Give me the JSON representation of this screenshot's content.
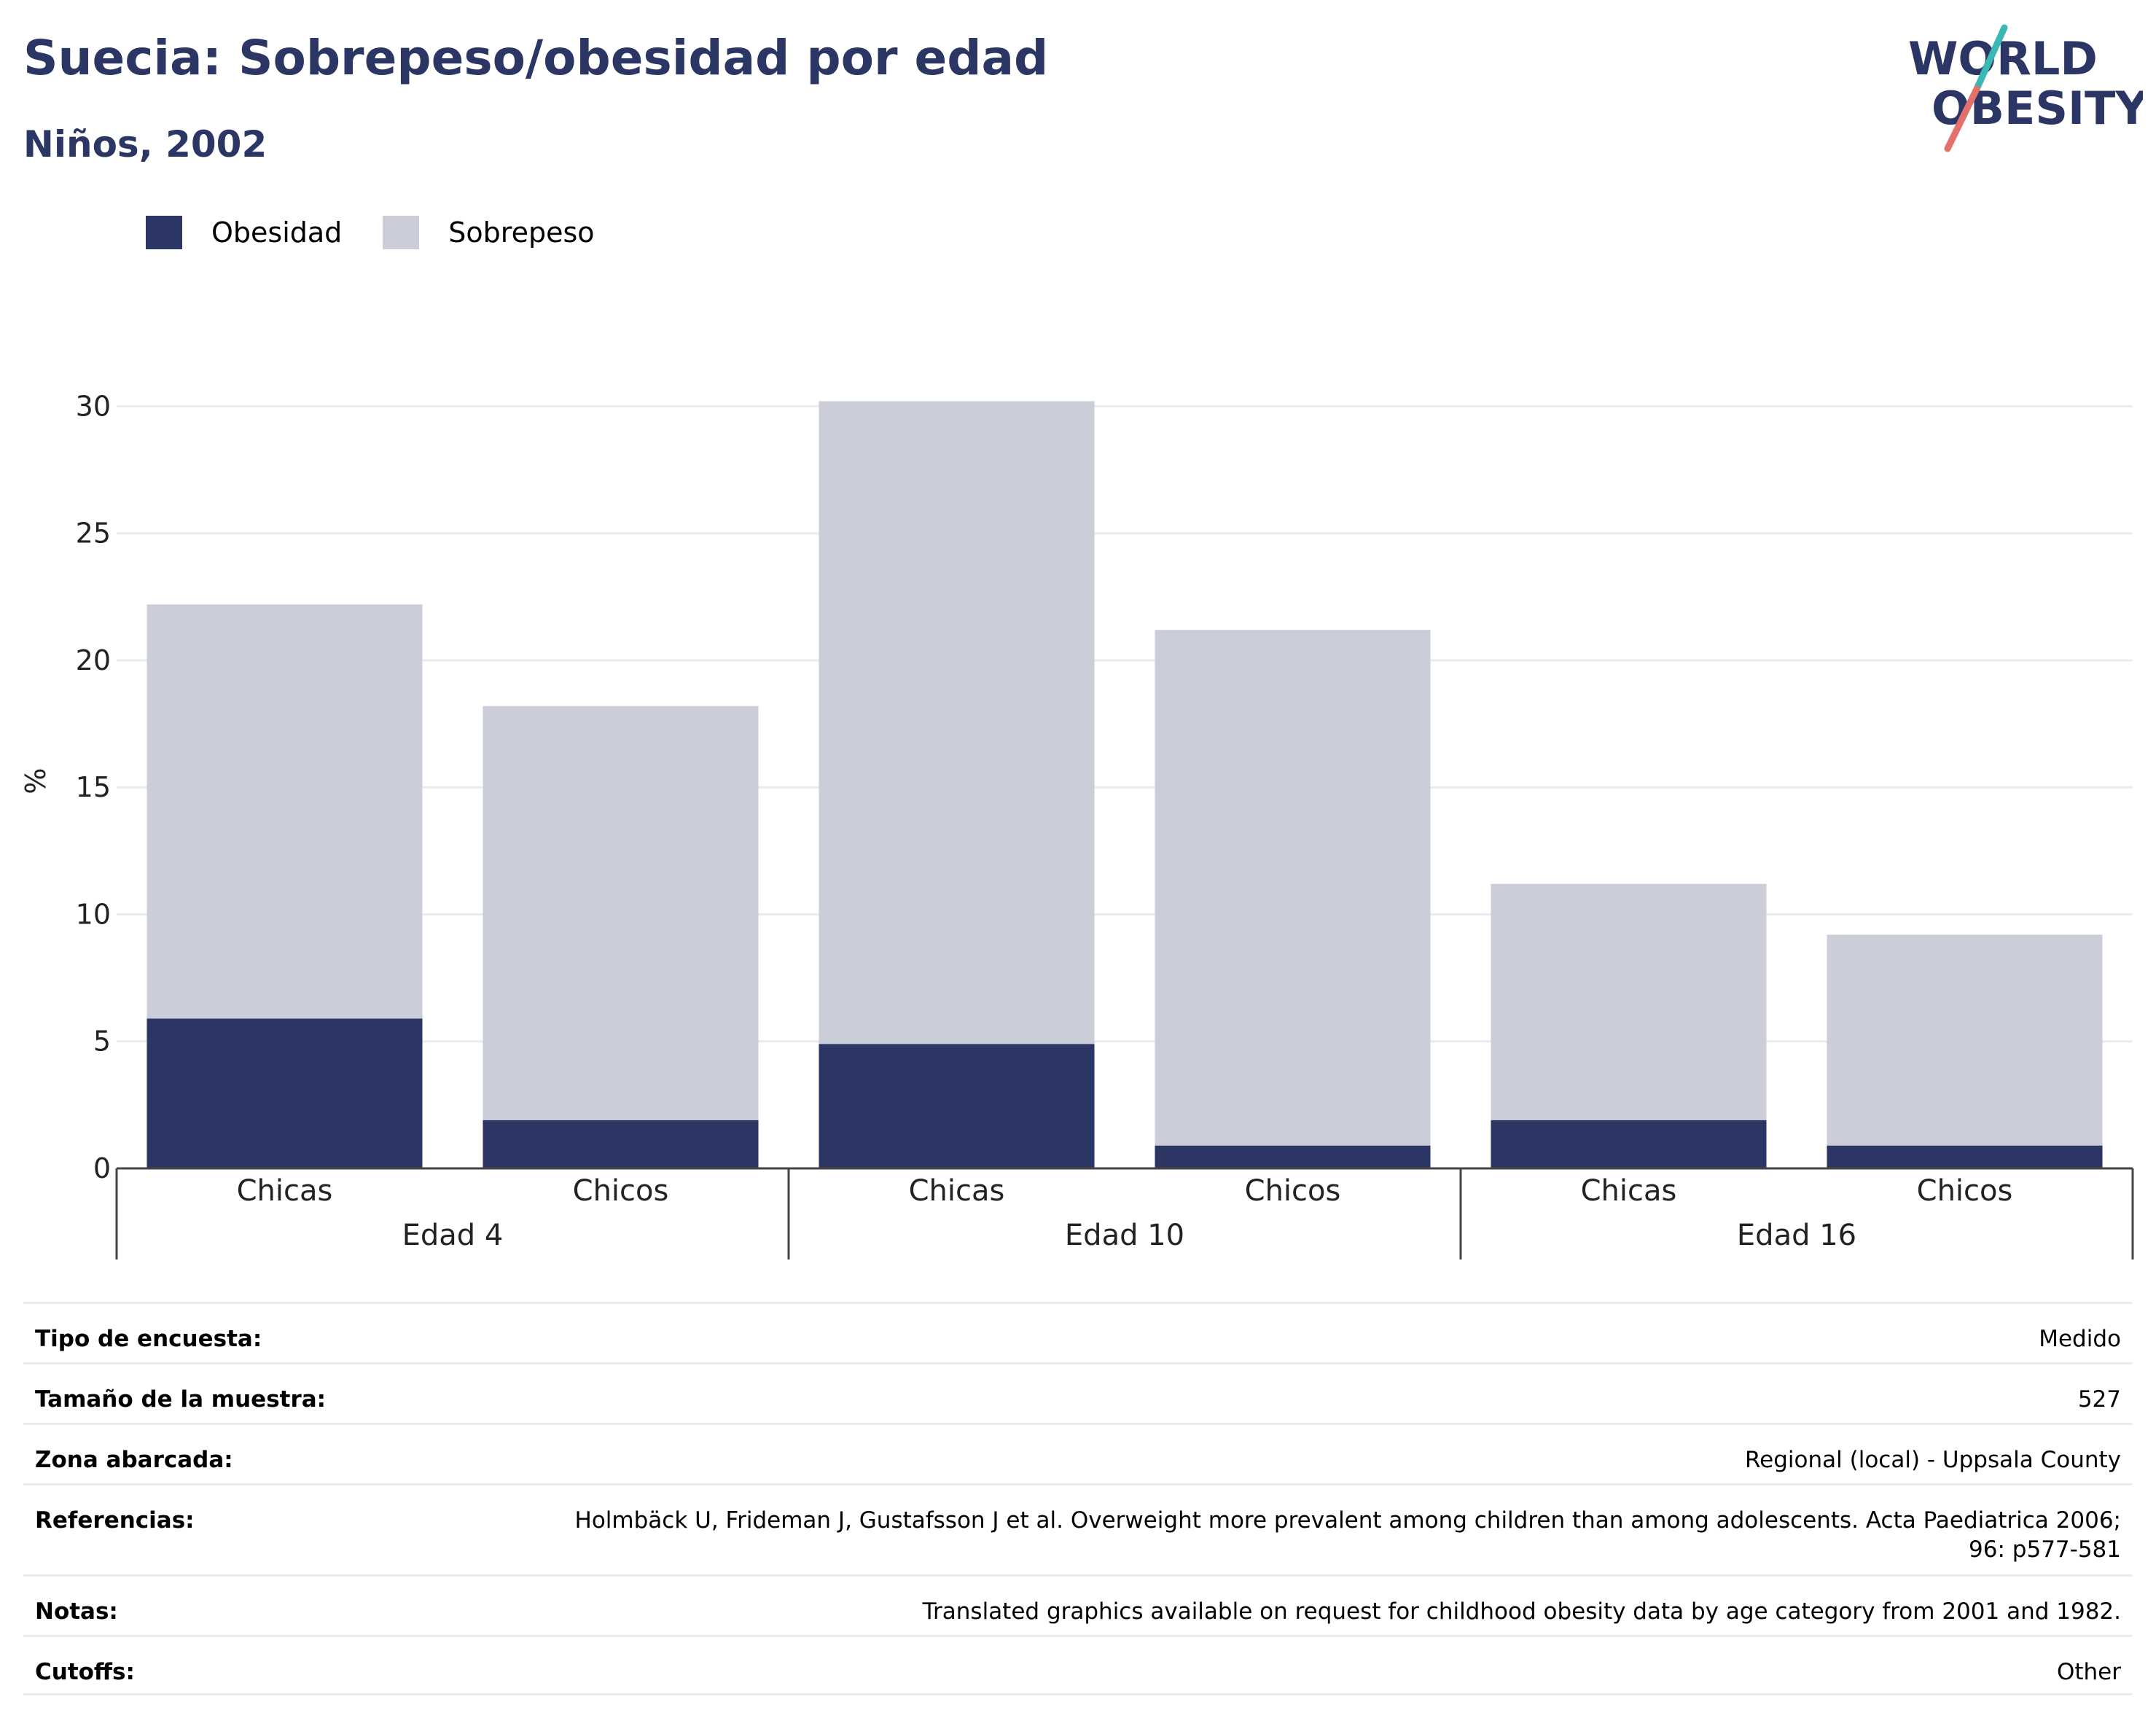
{
  "header": {
    "title": "Suecia: Sobrepeso/obesidad por edad",
    "subtitle": "Niños, 2002"
  },
  "logo": {
    "line1": "WORLD",
    "line2": "OBESITY"
  },
  "colors": {
    "obesity": "#2b3664",
    "overweight": "#cbcdd9",
    "title": "#2b3664",
    "logo_teal": "#3bb8b4",
    "logo_coral": "#e2716a"
  },
  "chart_data": {
    "type": "bar",
    "stacked": true,
    "ylabel": "%",
    "ylim": [
      0,
      30.5
    ],
    "yticks": [
      0,
      5,
      10,
      15,
      20,
      25,
      30
    ],
    "grid": true,
    "legend_position": "top-left",
    "groups": [
      "Edad 4",
      "Edad 10",
      "Edad 16"
    ],
    "categories": [
      "Chicas",
      "Chicos",
      "Chicas",
      "Chicos",
      "Chicas",
      "Chicos"
    ],
    "category_group": [
      0,
      0,
      1,
      1,
      2,
      2
    ],
    "series": [
      {
        "name": "Obesidad",
        "values": [
          5.9,
          1.9,
          4.9,
          0.9,
          1.9,
          0.9
        ]
      },
      {
        "name": "Sobrepeso",
        "values": [
          16.3,
          16.3,
          25.3,
          20.3,
          9.3,
          8.3
        ]
      }
    ]
  },
  "info": [
    {
      "label": "Tipo de encuesta:",
      "value": "Medido",
      "lines": 1
    },
    {
      "label": "Tamaño de la muestra:",
      "value": "527",
      "lines": 1
    },
    {
      "label": "Zona abarcada:",
      "value": "Regional (local) - Uppsala County",
      "lines": 1
    },
    {
      "label": "Referencias:",
      "value": "Holmbäck U, Frideman J, Gustafsson J et al. Overweight more prevalent among children than among adolescents. Acta Paediatrica 2006; 96: p577-581",
      "lines": 2
    },
    {
      "label": "Notas:",
      "value": "Translated graphics available on request for childhood obesity data by age category from 2001 and 1982.",
      "lines": 1
    },
    {
      "label": "Cutoffs:",
      "value": "Other",
      "lines": 1
    }
  ]
}
